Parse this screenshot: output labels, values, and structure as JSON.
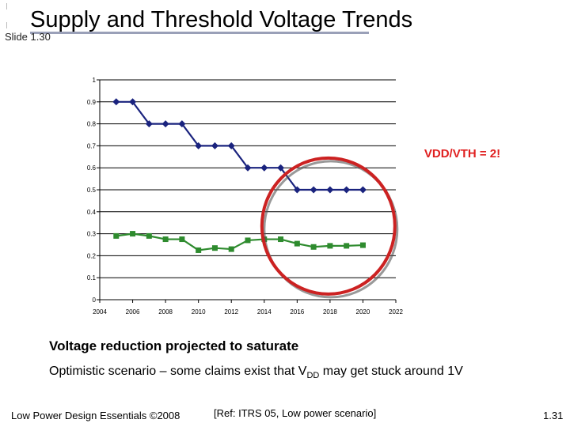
{
  "slide": {
    "title": "Supply and Threshold Voltage Trends",
    "label": "Slide 1.30",
    "headline": "Voltage reduction projected to saturate",
    "note": {
      "before": "Optimistic scenario – some claims exist that V",
      "subscript": "DD",
      "after": " may get stuck around 1V"
    },
    "footer_left": "Low Power Design Essentials ©2008",
    "footer_ref": "[Ref: ITRS 05, Low power scenario]",
    "footer_page": "1.31"
  },
  "colors": {
    "series_vdd": "#1a237e",
    "series_vth": "#2e8b2e",
    "annotation": "#e02020",
    "circle": "#cc2222"
  },
  "chart_data": {
    "type": "line",
    "xlim": [
      2004,
      2022
    ],
    "ylim": [
      0,
      1
    ],
    "x_ticks": [
      "2004",
      "2006",
      "2008",
      "2010",
      "2012",
      "2014",
      "2016",
      "2018",
      "2020",
      "2022"
    ],
    "y_ticks": [
      "0",
      "0.1",
      "0.2",
      "0.3",
      "0.4",
      "0.5",
      "0.6",
      "0.7",
      "0.8",
      "0.9",
      "1"
    ],
    "grid": true,
    "series": [
      {
        "marker": "diamond",
        "x": [
          2005,
          2006,
          2007,
          2008,
          2009,
          2010,
          2011,
          2012,
          2013,
          2014,
          2015,
          2016,
          2017,
          2018,
          2019,
          2020
        ],
        "values": [
          0.9,
          0.9,
          0.8,
          0.8,
          0.8,
          0.7,
          0.7,
          0.7,
          0.6,
          0.6,
          0.6,
          0.5,
          0.5,
          0.5,
          0.5,
          0.5
        ]
      },
      {
        "marker": "square",
        "x": [
          2005,
          2006,
          2007,
          2008,
          2009,
          2010,
          2011,
          2012,
          2013,
          2014,
          2015,
          2016,
          2017,
          2018,
          2019,
          2020
        ],
        "values": [
          0.29,
          0.3,
          0.29,
          0.275,
          0.275,
          0.225,
          0.235,
          0.23,
          0.27,
          0.275,
          0.275,
          0.255,
          0.24,
          0.245,
          0.245,
          0.248
        ]
      }
    ],
    "annotations": [
      {
        "text": "VDD/VTH = 2!",
        "near_x": 2019,
        "near_y": 0.67
      }
    ]
  }
}
